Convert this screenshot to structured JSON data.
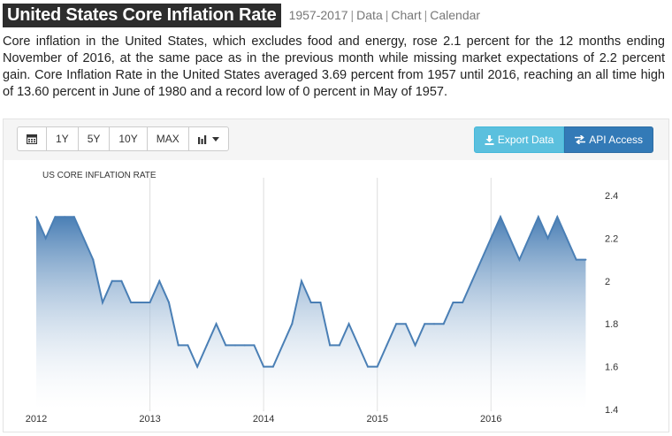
{
  "header": {
    "title": "United States Core Inflation Rate",
    "range": "1957-2017",
    "links": [
      "Data",
      "Chart",
      "Calendar"
    ]
  },
  "description": "Core inflation in the United States, which excludes food and energy, rose 2.1 percent for the 12 months ending November of 2016, at the same pace as in the previous month while missing market expectations of 2.2 percent gain. Core Inflation Rate in the United States averaged 3.69 percent from 1957 until 2016, reaching an all time high of 13.60 percent in June of 1980 and a record low of 0 percent in May of 1957.",
  "toolbar": {
    "buttons": [
      "1Y",
      "5Y",
      "10Y",
      "MAX"
    ],
    "calendar_icon": "calendar-icon",
    "chart_type_icon": "bar-chart-icon",
    "export_label": "Export Data",
    "api_label": "API Access"
  },
  "colors": {
    "line": "#4a7fb5",
    "fill_top": "#4a7fb5",
    "fill_bottom": "#ffffff",
    "export_bg": "#5bc0de",
    "api_bg": "#337ab7"
  },
  "chart_data": {
    "type": "area",
    "title": "US CORE INFLATION RATE",
    "xlabel": "",
    "ylabel": "",
    "x_ticks": [
      "2012",
      "2013",
      "2014",
      "2015",
      "2016"
    ],
    "y_ticks": [
      "1.4",
      "1.6",
      "1.8",
      "2",
      "2.2",
      "2.4"
    ],
    "ylim": [
      1.4,
      2.4
    ],
    "start": "2012-01",
    "frequency": "monthly",
    "values": [
      2.3,
      2.2,
      2.3,
      2.3,
      2.3,
      2.2,
      2.1,
      1.9,
      2.0,
      2.0,
      1.9,
      1.9,
      1.9,
      2.0,
      1.9,
      1.7,
      1.7,
      1.6,
      1.7,
      1.8,
      1.7,
      1.7,
      1.7,
      1.7,
      1.6,
      1.6,
      1.7,
      1.8,
      2.0,
      1.9,
      1.9,
      1.7,
      1.7,
      1.8,
      1.7,
      1.6,
      1.6,
      1.7,
      1.8,
      1.8,
      1.7,
      1.8,
      1.8,
      1.8,
      1.9,
      1.9,
      2.0,
      2.1,
      2.2,
      2.3,
      2.2,
      2.1,
      2.2,
      2.3,
      2.2,
      2.3,
      2.2,
      2.1,
      2.1
    ]
  }
}
